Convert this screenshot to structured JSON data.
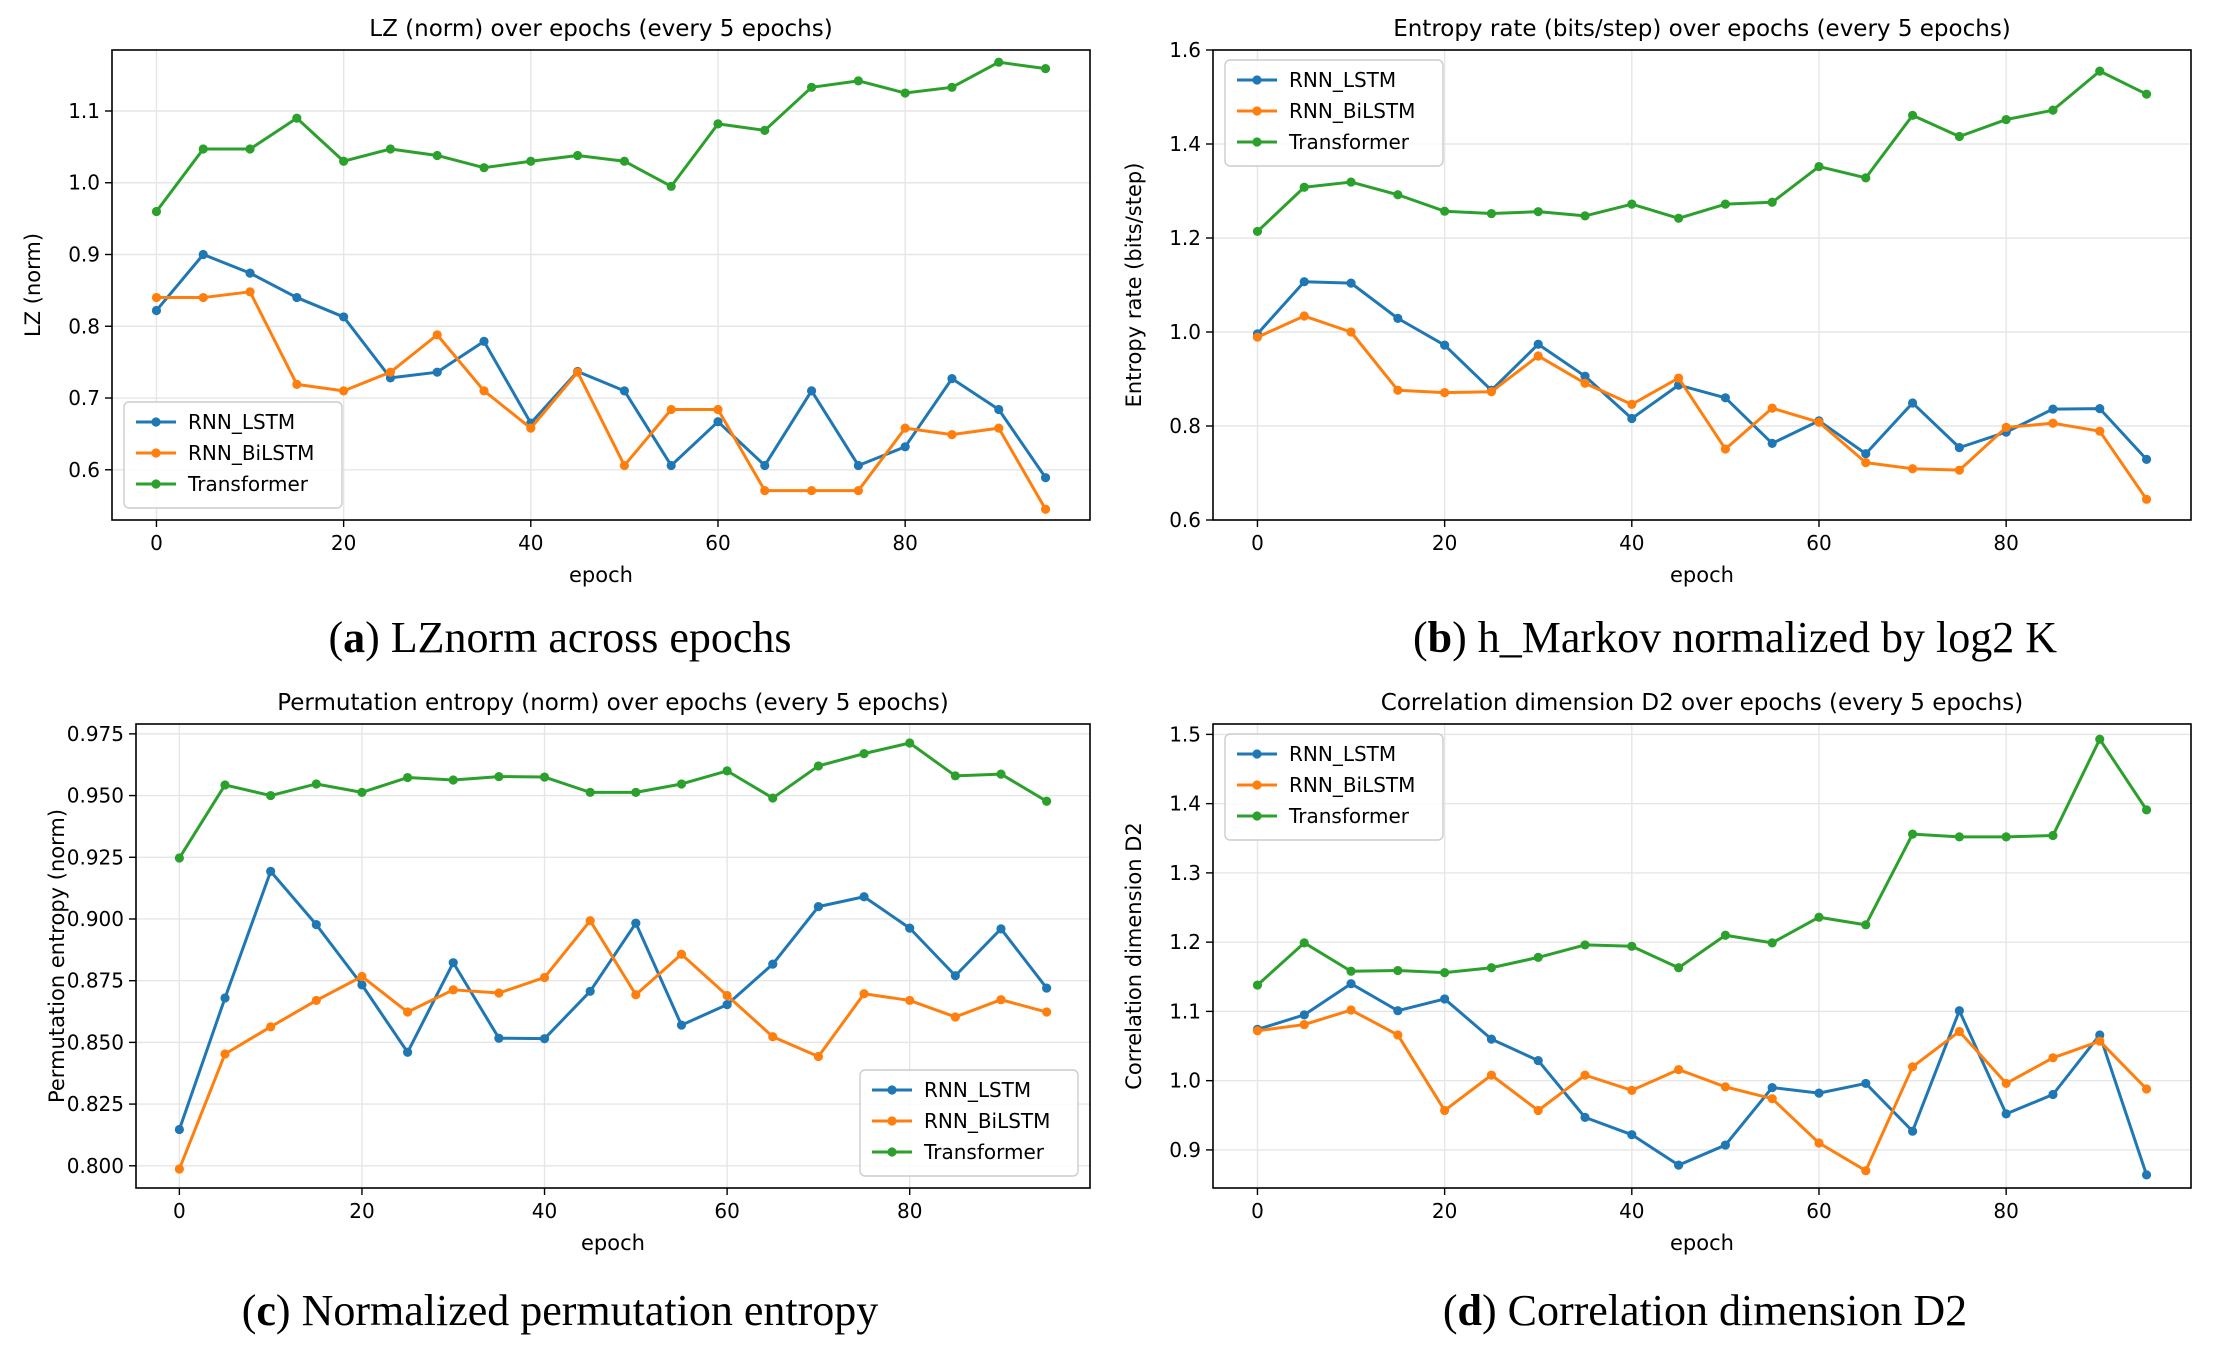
{
  "style": {
    "series_colors": [
      "#1f77b4",
      "#ff7f0e",
      "#2ca02c"
    ],
    "grid_color": "#e6e6e6"
  },
  "chart_data": [
    {
      "id": "a",
      "type": "line",
      "title": "LZ (norm) over epochs (every 5 epochs)",
      "xlabel": "epoch",
      "ylabel": "LZ (norm)",
      "caption_letter": "a",
      "caption_text": " LZnorm across epochs",
      "xlim": [
        -4.75,
        99.75
      ],
      "ylim": [
        0.53,
        1.185
      ],
      "xticks": [
        0,
        20,
        40,
        60,
        80
      ],
      "yticks": [
        0.6,
        0.7,
        0.8,
        0.9,
        1.0,
        1.1
      ],
      "ytick_labels": [
        "0.6",
        "0.7",
        "0.8",
        "0.9",
        "1.0",
        "1.1"
      ],
      "grid": true,
      "legend_position": "lower-left",
      "x": [
        0,
        5,
        10,
        15,
        20,
        25,
        30,
        35,
        40,
        45,
        50,
        55,
        60,
        65,
        70,
        75,
        80,
        85,
        90,
        95
      ],
      "series": [
        {
          "name": "RNN_LSTM",
          "values": [
            0.822,
            0.9,
            0.874,
            0.84,
            0.813,
            0.728,
            0.736,
            0.779,
            0.665,
            0.737,
            0.71,
            0.606,
            0.667,
            0.606,
            0.71,
            0.606,
            0.632,
            0.727,
            0.684,
            0.589
          ]
        },
        {
          "name": "RNN_BiLSTM",
          "values": [
            0.84,
            0.84,
            0.848,
            0.719,
            0.71,
            0.736,
            0.788,
            0.71,
            0.658,
            0.736,
            0.606,
            0.684,
            0.684,
            0.571,
            0.571,
            0.571,
            0.658,
            0.649,
            0.658,
            0.545
          ]
        },
        {
          "name": "Transformer",
          "values": [
            0.96,
            1.047,
            1.047,
            1.09,
            1.03,
            1.047,
            1.038,
            1.021,
            1.03,
            1.038,
            1.03,
            0.995,
            1.082,
            1.073,
            1.133,
            1.142,
            1.125,
            1.133,
            1.168,
            1.159
          ]
        }
      ]
    },
    {
      "id": "b",
      "type": "line",
      "title": "Entropy rate (bits/step) over epochs (every 5 epochs)",
      "xlabel": "epoch",
      "ylabel": "Entropy rate (bits/step)",
      "caption_letter": "b",
      "caption_text": " h_Markov normalized by log2 K",
      "xlim": [
        -4.75,
        99.75
      ],
      "ylim": [
        0.6,
        1.6
      ],
      "xticks": [
        0,
        20,
        40,
        60,
        80
      ],
      "yticks": [
        0.6,
        0.8,
        1.0,
        1.2,
        1.4,
        1.6
      ],
      "ytick_labels": [
        "0.6",
        "0.8",
        "1.0",
        "1.2",
        "1.4",
        "1.6"
      ],
      "grid": true,
      "legend_position": "upper-left",
      "x": [
        0,
        5,
        10,
        15,
        20,
        25,
        30,
        35,
        40,
        45,
        50,
        55,
        60,
        65,
        70,
        75,
        80,
        85,
        90,
        95
      ],
      "series": [
        {
          "name": "RNN_LSTM",
          "values": [
            0.996,
            1.107,
            1.104,
            1.029,
            0.972,
            0.876,
            0.974,
            0.906,
            0.816,
            0.887,
            0.86,
            0.763,
            0.811,
            0.741,
            0.849,
            0.754,
            0.787,
            0.836,
            0.837,
            0.729
          ]
        },
        {
          "name": "RNN_BiLSTM",
          "values": [
            0.989,
            1.034,
            1.0,
            0.876,
            0.871,
            0.873,
            0.949,
            0.891,
            0.846,
            0.902,
            0.751,
            0.838,
            0.808,
            0.722,
            0.709,
            0.706,
            0.797,
            0.806,
            0.789,
            0.644
          ]
        },
        {
          "name": "Transformer",
          "values": [
            1.214,
            1.308,
            1.319,
            1.292,
            1.257,
            1.252,
            1.256,
            1.247,
            1.272,
            1.242,
            1.272,
            1.276,
            1.352,
            1.328,
            1.461,
            1.416,
            1.452,
            1.472,
            1.555,
            1.506
          ]
        }
      ]
    },
    {
      "id": "c",
      "type": "line",
      "title": "Permutation entropy (norm) over epochs (every 5 epochs)",
      "xlabel": "epoch",
      "ylabel": "Permutation entropy (norm)",
      "caption_letter": "c",
      "caption_text": " Normalized permutation entropy",
      "xlim": [
        -4.75,
        99.75
      ],
      "ylim": [
        0.791,
        0.979
      ],
      "xticks": [
        0,
        20,
        40,
        60,
        80
      ],
      "yticks": [
        0.8,
        0.825,
        0.85,
        0.875,
        0.9,
        0.925,
        0.95,
        0.975
      ],
      "ytick_labels": [
        "0.800",
        "0.825",
        "0.850",
        "0.875",
        "0.900",
        "0.925",
        "0.950",
        "0.975"
      ],
      "grid": true,
      "legend_position": "lower-right",
      "x": [
        0,
        5,
        10,
        15,
        20,
        25,
        30,
        35,
        40,
        45,
        50,
        55,
        60,
        65,
        70,
        75,
        80,
        85,
        90,
        95
      ],
      "series": [
        {
          "name": "RNN_LSTM",
          "values": [
            0.8147,
            0.868,
            0.9193,
            0.8977,
            0.8733,
            0.846,
            0.8823,
            0.8517,
            0.8515,
            0.8707,
            0.8983,
            0.857,
            0.8653,
            0.8817,
            0.905,
            0.909,
            0.8963,
            0.877,
            0.896,
            0.872
          ]
        },
        {
          "name": "RNN_BiLSTM",
          "values": [
            0.7987,
            0.8453,
            0.8563,
            0.867,
            0.8767,
            0.8623,
            0.8713,
            0.87,
            0.8763,
            0.8993,
            0.8693,
            0.8857,
            0.869,
            0.8523,
            0.8443,
            0.8697,
            0.867,
            0.8603,
            0.8673,
            0.8623
          ]
        },
        {
          "name": "Transformer",
          "values": [
            0.9247,
            0.9543,
            0.95,
            0.9547,
            0.9513,
            0.9573,
            0.9563,
            0.9577,
            0.9575,
            0.9513,
            0.9513,
            0.9547,
            0.96,
            0.949,
            0.962,
            0.967,
            0.9713,
            0.958,
            0.9587,
            0.9477
          ]
        }
      ]
    },
    {
      "id": "d",
      "type": "line",
      "title": "Correlation dimension D2 over epochs (every 5 epochs)",
      "xlabel": "epoch",
      "ylabel": "Correlation dimension D2",
      "caption_letter": "d",
      "caption_text": " Correlation dimension D2",
      "xlim": [
        -4.75,
        99.75
      ],
      "ylim": [
        0.845,
        1.515
      ],
      "xticks": [
        0,
        20,
        40,
        60,
        80
      ],
      "yticks": [
        0.9,
        1.0,
        1.1,
        1.2,
        1.3,
        1.4,
        1.5
      ],
      "ytick_labels": [
        "0.9",
        "1.0",
        "1.1",
        "1.2",
        "1.3",
        "1.4",
        "1.5"
      ],
      "grid": true,
      "legend_position": "upper-left",
      "x": [
        0,
        5,
        10,
        15,
        20,
        25,
        30,
        35,
        40,
        45,
        50,
        55,
        60,
        65,
        70,
        75,
        80,
        85,
        90,
        95
      ],
      "series": [
        {
          "name": "RNN_LSTM",
          "values": [
            1.074,
            1.095,
            1.14,
            1.101,
            1.118,
            1.06,
            1.029,
            0.947,
            0.922,
            0.878,
            0.907,
            0.99,
            0.982,
            0.996,
            0.927,
            1.101,
            0.952,
            0.98,
            1.066,
            0.864
          ]
        },
        {
          "name": "RNN_BiLSTM",
          "values": [
            1.072,
            1.081,
            1.102,
            1.066,
            0.957,
            1.008,
            0.957,
            1.008,
            0.986,
            1.016,
            0.991,
            0.974,
            0.91,
            0.87,
            1.02,
            1.071,
            0.996,
            1.033,
            1.057,
            0.988
          ]
        },
        {
          "name": "Transformer",
          "values": [
            1.138,
            1.199,
            1.158,
            1.159,
            1.156,
            1.163,
            1.178,
            1.196,
            1.194,
            1.163,
            1.21,
            1.199,
            1.236,
            1.225,
            1.356,
            1.352,
            1.352,
            1.354,
            1.493,
            1.391
          ]
        }
      ]
    }
  ]
}
